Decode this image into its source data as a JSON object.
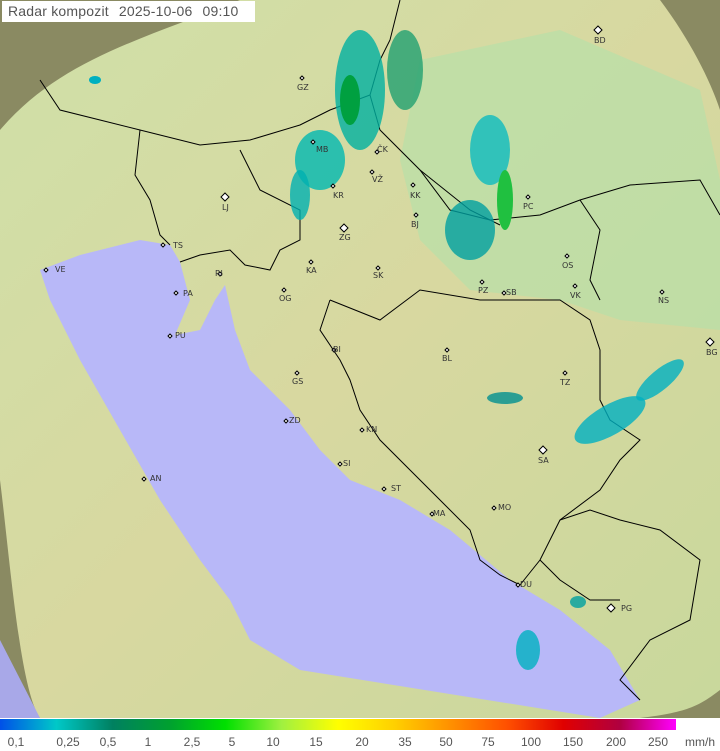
{
  "title": {
    "label": "Radar kompozit",
    "date": "2025-10-06",
    "time": "09:10"
  },
  "legend": {
    "unit": "mm/h",
    "values": [
      "0,1",
      "0,25",
      "0,5",
      "1",
      "2,5",
      "5",
      "10",
      "15",
      "20",
      "35",
      "50",
      "75",
      "100",
      "150",
      "200",
      "250"
    ],
    "colors": [
      "#0050e8",
      "#00c8c8",
      "#008060",
      "#00a030",
      "#00e000",
      "#a0f040",
      "#ffff00",
      "#ffd000",
      "#ff9000",
      "#ff5000",
      "#e00000",
      "#b00040",
      "#ff00ff"
    ]
  },
  "colors": {
    "sea": "#b8b8f8",
    "land": "#c8dca0",
    "outside_coverage": "#8a8a62",
    "border": "#000000"
  },
  "cities": [
    {
      "code": "BD",
      "type": "diamond"
    },
    {
      "code": "GZ",
      "type": "dot"
    },
    {
      "code": "MB",
      "type": "dot"
    },
    {
      "code": "ČK",
      "type": "dot"
    },
    {
      "code": "VŽ",
      "type": "dot"
    },
    {
      "code": "KK",
      "type": "dot"
    },
    {
      "code": "KR",
      "type": "dot"
    },
    {
      "code": "LJ",
      "type": "diamond"
    },
    {
      "code": "PC",
      "type": "dot"
    },
    {
      "code": "BJ",
      "type": "dot"
    },
    {
      "code": "ZG",
      "type": "diamond"
    },
    {
      "code": "TS",
      "type": "dot"
    },
    {
      "code": "VE",
      "type": "dot"
    },
    {
      "code": "KA",
      "type": "dot"
    },
    {
      "code": "SK",
      "type": "dot"
    },
    {
      "code": "OS",
      "type": "dot"
    },
    {
      "code": "RI",
      "type": "dot"
    },
    {
      "code": "PA",
      "type": "dot"
    },
    {
      "code": "OG",
      "type": "dot"
    },
    {
      "code": "PZ",
      "type": "dot"
    },
    {
      "code": "SB",
      "type": "dot"
    },
    {
      "code": "VK",
      "type": "dot"
    },
    {
      "code": "NS",
      "type": "dot"
    },
    {
      "code": "PU",
      "type": "dot"
    },
    {
      "code": "BG",
      "type": "diamond"
    },
    {
      "code": "BI",
      "type": "dot"
    },
    {
      "code": "BL",
      "type": "dot"
    },
    {
      "code": "GS",
      "type": "dot"
    },
    {
      "code": "TZ",
      "type": "dot"
    },
    {
      "code": "ZD",
      "type": "dot"
    },
    {
      "code": "KN",
      "type": "dot"
    },
    {
      "code": "SA",
      "type": "diamond"
    },
    {
      "code": "SI",
      "type": "dot"
    },
    {
      "code": "AN",
      "type": "dot"
    },
    {
      "code": "ST",
      "type": "dot"
    },
    {
      "code": "MA",
      "type": "dot"
    },
    {
      "code": "MO",
      "type": "dot"
    },
    {
      "code": "DU",
      "type": "dot"
    },
    {
      "code": "PG",
      "type": "diamond"
    }
  ]
}
